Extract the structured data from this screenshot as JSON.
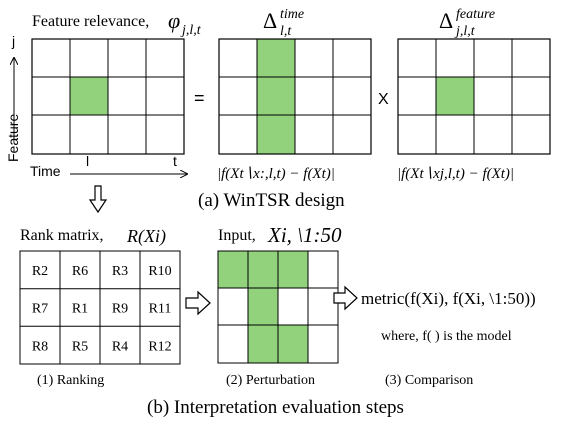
{
  "colors": {
    "green": "#92d27c",
    "line": "#000000",
    "background": "#ffffff"
  },
  "top": {
    "relevance_label": "Feature relevance,",
    "phi_symbol": "φ",
    "phi_subscript": "j,l,t",
    "eq_sign": "=",
    "times_sign": "X",
    "delta_symbol": "Δ",
    "delta_time_sup": "time",
    "delta_time_sub": "l,t",
    "delta_feature_sup": "feature",
    "delta_feature_sub": "j,l,t",
    "axis_feature": "Feature",
    "axis_j": "j",
    "axis_time": "Time",
    "axis_l": "l",
    "axis_t": "t",
    "formula_time": "|f(Xt∖x:,l,t) − f(Xt)|",
    "formula_feature": "|f(Xt∖xj,l,t) − f(Xt)|",
    "caption": "(a) WinTSR design"
  },
  "bottom": {
    "rank_label": "Rank matrix,",
    "rank_func": "R(Xi)",
    "input_label": "Input,",
    "input_sym": "Xi, \\1:50",
    "ranks": [
      [
        "R2",
        "R6",
        "R3",
        "R10"
      ],
      [
        "R7",
        "R1",
        "R9",
        "R11"
      ],
      [
        "R8",
        "R5",
        "R4",
        "R12"
      ]
    ],
    "metric": "metric(f(Xi), f(Xi, \\1:50))",
    "where": "where, f( ) is the model",
    "step1": "(1) Ranking",
    "step2": "(2) Perturbation",
    "step3": "(3) Comparison",
    "caption": "(b) Interpretation evaluation steps"
  }
}
